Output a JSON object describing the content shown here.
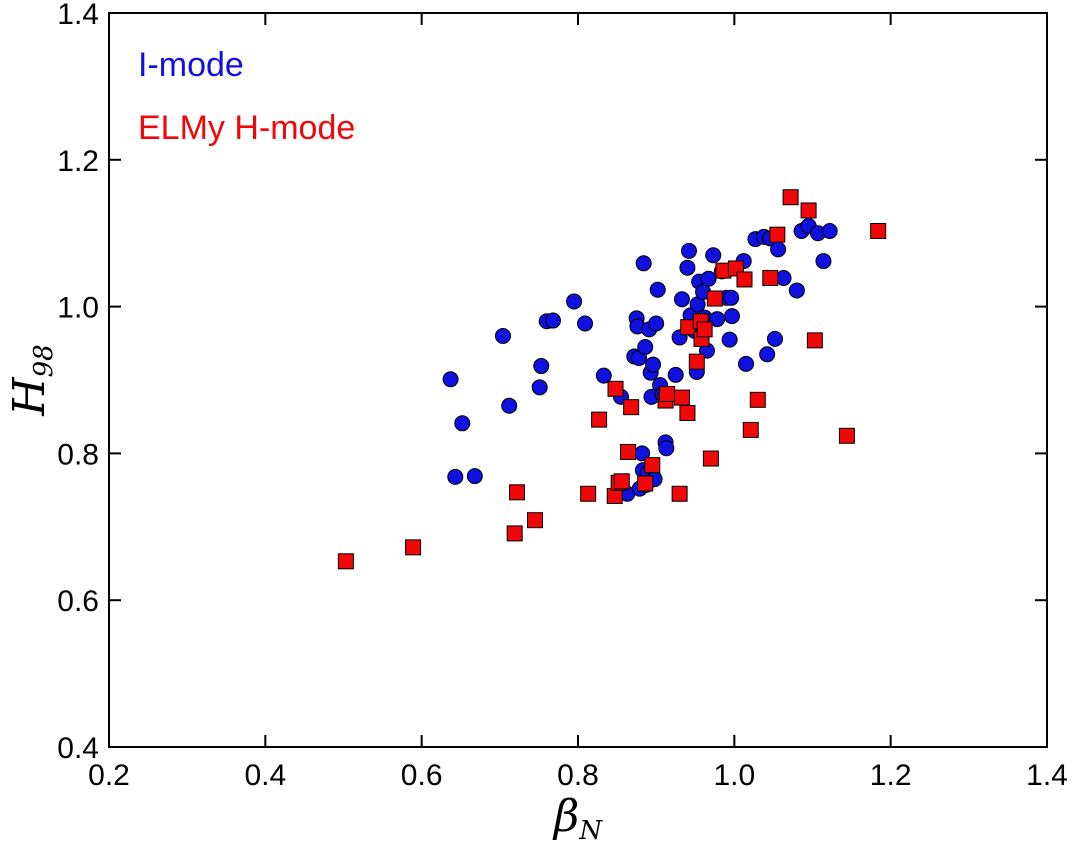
{
  "chart_data": {
    "type": "scatter",
    "title": "",
    "xlabel": "β",
    "xlabel_sub": "N",
    "ylabel": "H",
    "ylabel_sub": "98",
    "xlim": [
      0.2,
      1.4
    ],
    "ylim": [
      0.4,
      1.4
    ],
    "xticks": [
      0.2,
      0.4,
      0.6,
      0.8,
      1.0,
      1.2,
      1.4
    ],
    "xtick_labels": [
      "0.2",
      "0.4",
      "0.6",
      "0.8",
      "1.0",
      "1.2",
      "1.4"
    ],
    "yticks": [
      0.4,
      0.6,
      0.8,
      1.0,
      1.2,
      1.4
    ],
    "ytick_labels": [
      "0.4",
      "0.6",
      "0.8",
      "1.0",
      "1.2",
      "1.4"
    ],
    "grid": false,
    "legend_position": "top-left",
    "series": [
      {
        "name": "I-mode",
        "marker": "circle",
        "color": "#1010e0",
        "points": [
          [
            0.637,
            0.901
          ],
          [
            0.643,
            0.768
          ],
          [
            0.652,
            0.841
          ],
          [
            0.668,
            0.769
          ],
          [
            0.704,
            0.96
          ],
          [
            0.712,
            0.865
          ],
          [
            0.751,
            0.89
          ],
          [
            0.753,
            0.919
          ],
          [
            0.76,
            0.98
          ],
          [
            0.768,
            0.981
          ],
          [
            0.795,
            1.007
          ],
          [
            0.809,
            0.977
          ],
          [
            0.833,
            0.906
          ],
          [
            0.855,
            0.877
          ],
          [
            0.863,
            0.745
          ],
          [
            0.872,
            0.932
          ],
          [
            0.875,
            0.984
          ],
          [
            0.876,
            0.973
          ],
          [
            0.878,
            0.93
          ],
          [
            0.879,
            0.752
          ],
          [
            0.882,
            0.8
          ],
          [
            0.883,
            0.777
          ],
          [
            0.884,
            1.059
          ],
          [
            0.886,
            0.945
          ],
          [
            0.887,
            0.757
          ],
          [
            0.889,
            0.773
          ],
          [
            0.891,
            0.969
          ],
          [
            0.893,
            0.91
          ],
          [
            0.894,
            0.877
          ],
          [
            0.896,
            0.921
          ],
          [
            0.898,
            0.765
          ],
          [
            0.9,
            0.977
          ],
          [
            0.902,
            1.023
          ],
          [
            0.905,
            0.893
          ],
          [
            0.908,
            0.88
          ],
          [
            0.912,
            0.815
          ],
          [
            0.913,
            0.807
          ],
          [
            0.925,
            0.907
          ],
          [
            0.93,
            0.958
          ],
          [
            0.933,
            1.01
          ],
          [
            0.94,
            1.053
          ],
          [
            0.942,
            1.076
          ],
          [
            0.944,
            0.988
          ],
          [
            0.949,
            0.967
          ],
          [
            0.952,
            0.911
          ],
          [
            0.953,
            1.003
          ],
          [
            0.955,
            1.034
          ],
          [
            0.96,
            1.02
          ],
          [
            0.962,
            0.985
          ],
          [
            0.965,
            0.94
          ],
          [
            0.967,
            1.038
          ],
          [
            0.973,
            1.07
          ],
          [
            0.978,
            0.983
          ],
          [
            0.984,
            1.048
          ],
          [
            0.99,
            1.012
          ],
          [
            0.994,
            0.955
          ],
          [
            0.996,
            1.012
          ],
          [
            0.997,
            0.987
          ],
          [
            1.012,
            1.062
          ],
          [
            1.015,
            0.922
          ],
          [
            1.027,
            1.092
          ],
          [
            1.038,
            1.095
          ],
          [
            1.042,
            0.935
          ],
          [
            1.046,
            1.093
          ],
          [
            1.052,
            0.956
          ],
          [
            1.056,
            1.078
          ],
          [
            1.063,
            1.039
          ],
          [
            1.08,
            1.022
          ],
          [
            1.086,
            1.103
          ],
          [
            1.095,
            1.11
          ],
          [
            1.107,
            1.1
          ],
          [
            1.114,
            1.062
          ],
          [
            1.122,
            1.103
          ]
        ]
      },
      {
        "name": "ELMy H-mode",
        "marker": "square",
        "color": "#f00808",
        "points": [
          [
            0.503,
            0.653
          ],
          [
            0.589,
            0.672
          ],
          [
            0.719,
            0.691
          ],
          [
            0.722,
            0.747
          ],
          [
            0.745,
            0.709
          ],
          [
            0.813,
            0.745
          ],
          [
            0.827,
            0.846
          ],
          [
            0.847,
            0.742
          ],
          [
            0.848,
            0.888
          ],
          [
            0.852,
            0.76
          ],
          [
            0.856,
            0.762
          ],
          [
            0.864,
            0.802
          ],
          [
            0.868,
            0.863
          ],
          [
            0.886,
            0.759
          ],
          [
            0.895,
            0.784
          ],
          [
            0.912,
            0.872
          ],
          [
            0.914,
            0.881
          ],
          [
            0.93,
            0.745
          ],
          [
            0.933,
            0.876
          ],
          [
            0.94,
            0.855
          ],
          [
            0.941,
            0.972
          ],
          [
            0.952,
            0.925
          ],
          [
            0.957,
            0.98
          ],
          [
            0.958,
            0.956
          ],
          [
            0.962,
            0.969
          ],
          [
            0.97,
            0.793
          ],
          [
            0.975,
            1.011
          ],
          [
            0.986,
            1.049
          ],
          [
            1.002,
            1.052
          ],
          [
            1.013,
            1.037
          ],
          [
            1.021,
            0.832
          ],
          [
            1.03,
            0.873
          ],
          [
            1.046,
            1.039
          ],
          [
            1.055,
            1.098
          ],
          [
            1.072,
            1.149
          ],
          [
            1.095,
            1.131
          ],
          [
            1.103,
            0.954
          ],
          [
            1.144,
            0.824
          ],
          [
            1.184,
            1.103
          ]
        ]
      }
    ]
  }
}
